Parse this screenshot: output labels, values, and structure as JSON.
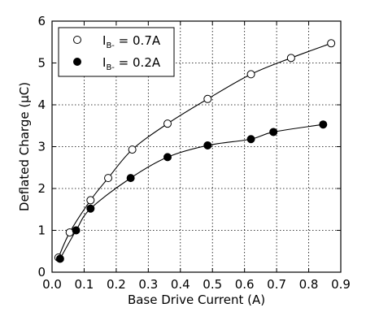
{
  "chart_data": {
    "type": "scatter",
    "title": "",
    "xlabel": "Base Drive Current (A)",
    "ylabel": "Deflated Charge (μC)",
    "xlim": [
      0.0,
      0.9
    ],
    "ylim": [
      0,
      6
    ],
    "xticks": [
      "0.0",
      "0.1",
      "0.2",
      "0.3",
      "0.4",
      "0.5",
      "0.6",
      "0.7",
      "0.8",
      "0.9"
    ],
    "yticks": [
      "0",
      "1",
      "2",
      "3",
      "4",
      "5",
      "6"
    ],
    "grid": true,
    "legend_position": "top-left",
    "series": [
      {
        "name": "I_B- = 0.7A",
        "label_main": "I",
        "label_sub": "B-",
        "label_rest": " = 0.7A",
        "marker": "open-circle",
        "color": "#000000",
        "x": [
          0.02,
          0.055,
          0.12,
          0.175,
          0.25,
          0.36,
          0.485,
          0.62,
          0.745,
          0.87
        ],
        "y": [
          0.35,
          0.95,
          1.72,
          2.25,
          2.93,
          3.55,
          4.14,
          4.73,
          5.12,
          5.47
        ]
      },
      {
        "name": "I_B- = 0.2A",
        "label_main": "I",
        "label_sub": "B-",
        "label_rest": " = 0.2A",
        "marker": "filled-circle",
        "color": "#000000",
        "x": [
          0.025,
          0.075,
          0.12,
          0.245,
          0.36,
          0.485,
          0.62,
          0.69,
          0.845
        ],
        "y": [
          0.32,
          1.0,
          1.52,
          2.25,
          2.75,
          3.03,
          3.18,
          3.35,
          3.53
        ]
      }
    ]
  }
}
